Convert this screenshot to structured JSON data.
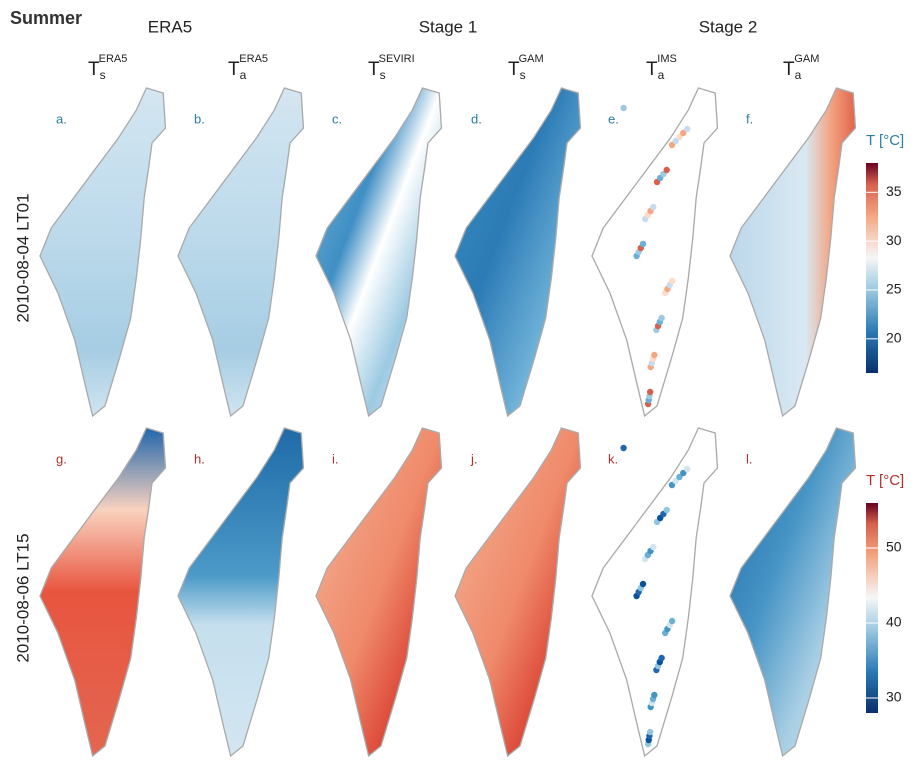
{
  "header": {
    "title": "Summer"
  },
  "column_groups": [
    "ERA5",
    "Stage 1",
    "Stage 2"
  ],
  "columns": [
    {
      "symbol": "T",
      "sub": "s",
      "sup": "ERA5"
    },
    {
      "symbol": "T",
      "sub": "a",
      "sup": "ERA5"
    },
    {
      "symbol": "T",
      "sub": "s",
      "sup": "SEVIRI"
    },
    {
      "symbol": "T",
      "sub": "s",
      "sup": "GAM"
    },
    {
      "symbol": "T",
      "sub": "a",
      "sup": "IMS"
    },
    {
      "symbol": "T",
      "sub": "a",
      "sup": "GAM"
    }
  ],
  "rows": [
    {
      "label": "2010-08-04 LT01",
      "panels": [
        "a.",
        "b.",
        "c.",
        "d.",
        "e.",
        "f."
      ],
      "colorbar": {
        "title": "T [°C]",
        "range": [
          16.5,
          38
        ],
        "ticks": [
          20,
          25,
          30,
          35
        ]
      }
    },
    {
      "label": "2010-08-06 LT15",
      "panels": [
        "g.",
        "h.",
        "i.",
        "j.",
        "k.",
        "l."
      ],
      "colorbar": {
        "title": "T [°C]",
        "range": [
          28,
          56
        ],
        "ticks": [
          30,
          40,
          50
        ]
      }
    }
  ]
}
